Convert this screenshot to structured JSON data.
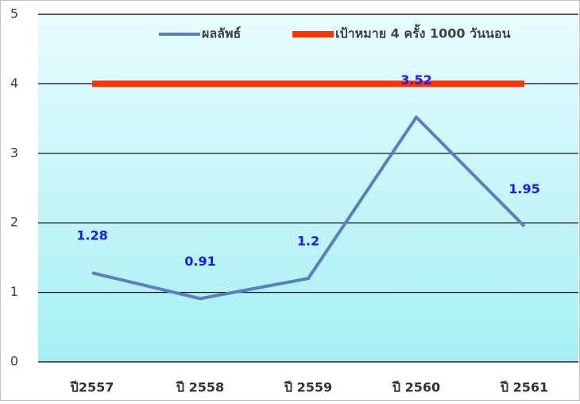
{
  "chart_data": {
    "type": "line",
    "categories": [
      "ปี2557",
      "ปี 2558",
      "ปี 2559",
      "ปี 2560",
      "ปี 2561"
    ],
    "series": [
      {
        "name": "ผลลัพธ์",
        "color": "#5a7fbb",
        "values": [
          1.28,
          0.91,
          1.2,
          3.52,
          1.95
        ]
      },
      {
        "name": "เป้าหมาย 4 ครั้ง 1000 วันนอน",
        "color": "#ff3300",
        "values": [
          4,
          4,
          4,
          4,
          4
        ]
      }
    ],
    "data_labels_series": 0,
    "ylim": [
      0,
      5
    ],
    "yticks": [
      0,
      1,
      2,
      3,
      4,
      5
    ],
    "grid": true,
    "legend": "top"
  }
}
